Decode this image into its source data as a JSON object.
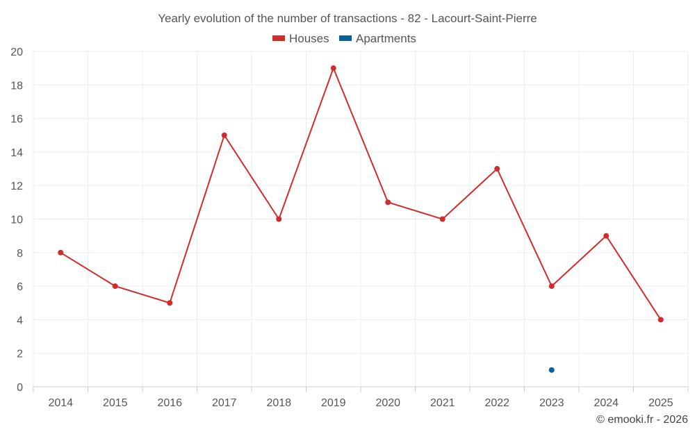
{
  "chart_data": {
    "type": "line",
    "title": "Yearly evolution of the number of transactions - 82 - Lacourt-Saint-Pierre",
    "categories": [
      "2014",
      "2015",
      "2016",
      "2017",
      "2018",
      "2019",
      "2020",
      "2021",
      "2022",
      "2023",
      "2024",
      "2025"
    ],
    "series": [
      {
        "name": "Houses",
        "color": "#d32a2a",
        "values": [
          8,
          6,
          5,
          15,
          10,
          19,
          11,
          10,
          13,
          6,
          9,
          4
        ]
      },
      {
        "name": "Apartments",
        "color": "#0b5f9a",
        "values": [
          null,
          null,
          null,
          null,
          null,
          null,
          null,
          null,
          null,
          1,
          null,
          null
        ]
      }
    ],
    "ylim": [
      0,
      20
    ],
    "yticks": [
      "0",
      "2",
      "4",
      "6",
      "8",
      "10",
      "12",
      "14",
      "16",
      "18",
      "20"
    ],
    "grid": true,
    "legend_position": "top-center"
  },
  "credit": "© emooki.fr - 2026"
}
